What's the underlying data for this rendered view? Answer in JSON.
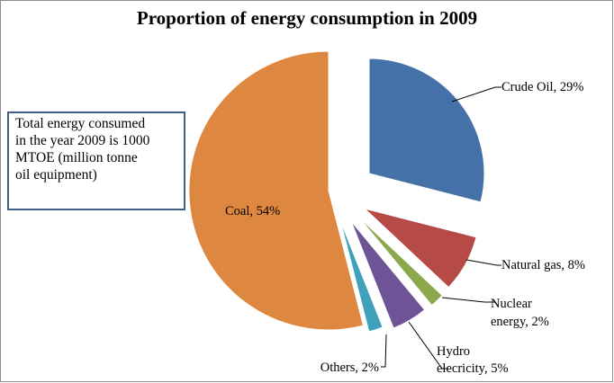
{
  "chart_data": {
    "type": "pie",
    "title": "Proportion of energy consumption in 2009",
    "slices": [
      {
        "name": "Crude Oil",
        "value": 29,
        "label_lines": [
          "Crude Oil, 29%"
        ],
        "color": "#4472a8"
      },
      {
        "name": "Natural gas",
        "value": 8,
        "label_lines": [
          "Natural gas, 8%"
        ],
        "color": "#b54a47"
      },
      {
        "name": "Nuclear energy",
        "value": 2,
        "label_lines": [
          "Nuclear",
          "energy, 2%"
        ],
        "color": "#8ba84a"
      },
      {
        "name": "Hydro elecricity",
        "value": 5,
        "label_lines": [
          "Hydro",
          "elecricity, 5%"
        ],
        "color": "#6e5496"
      },
      {
        "name": "Others",
        "value": 2,
        "label_lines": [
          "Others, 2%"
        ],
        "color": "#3fa1bb"
      },
      {
        "name": "Coal",
        "value": 54,
        "label_lines": [
          "Coal, 54%"
        ],
        "color": "#de8741"
      }
    ]
  },
  "note": {
    "lines": [
      "Total energy consumed",
      "in the year 2009 is 1000",
      "MTOE (million tonne",
      "oil equipment)"
    ]
  }
}
